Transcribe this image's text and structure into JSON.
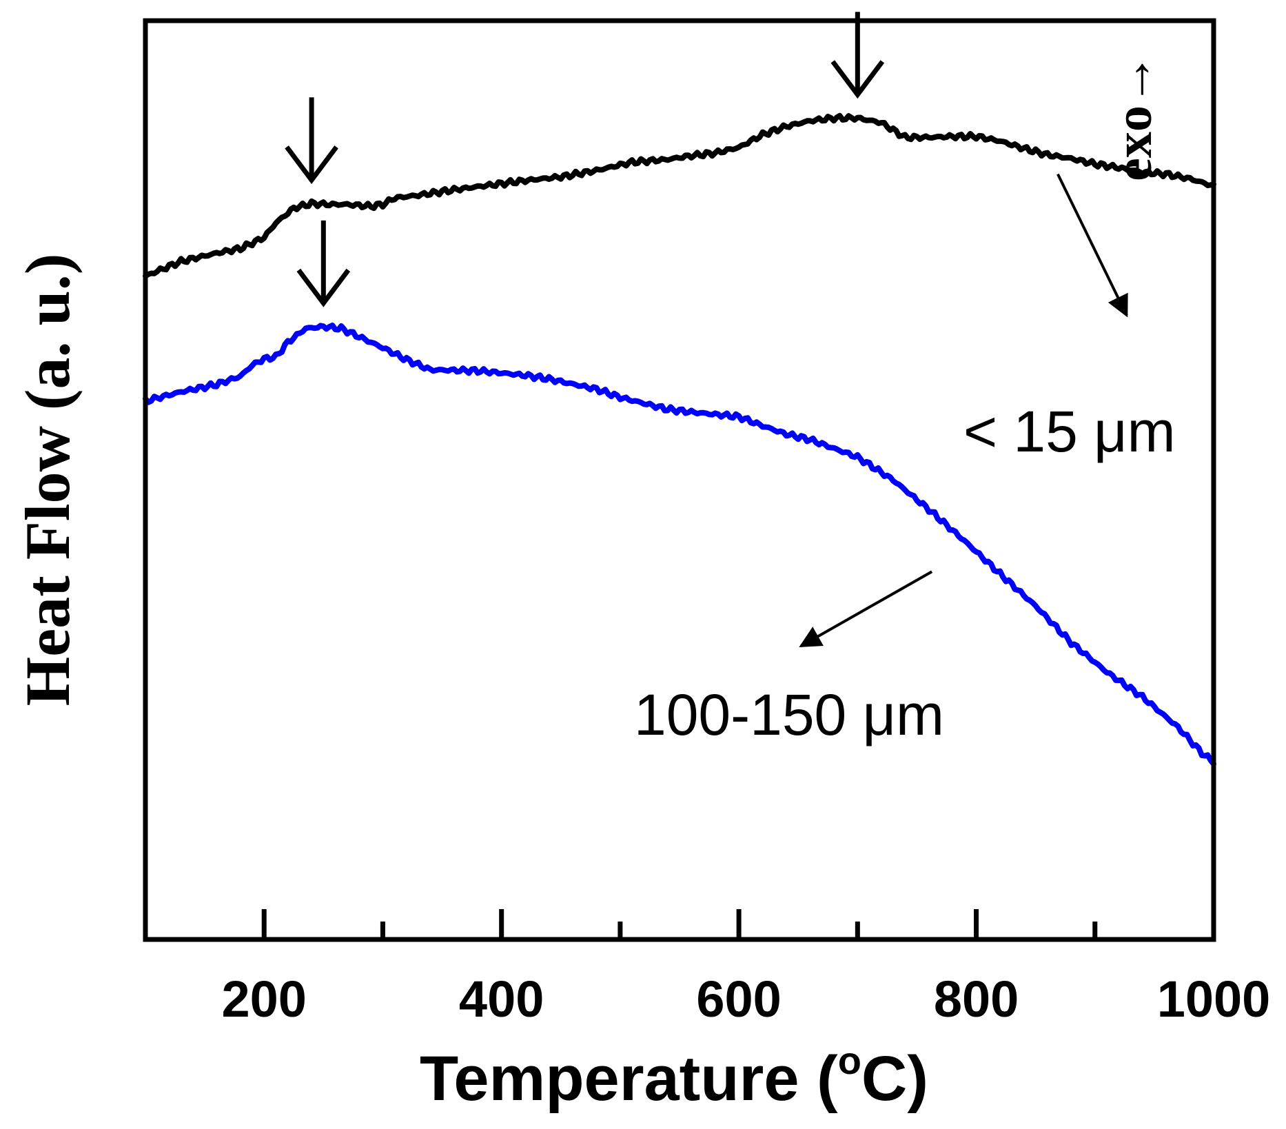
{
  "chart_data": {
    "type": "line",
    "title": "",
    "xlabel": "Temperature (",
    "xlabel_degree": "o",
    "xlabel_unit": "C)",
    "ylabel": "Heat Flow (a. u.)",
    "xlim": [
      100,
      1000
    ],
    "ylim": [
      0,
      100
    ],
    "x_ticks": [
      200,
      400,
      600,
      800,
      1000
    ],
    "x_minor_ticks": [
      300,
      500,
      700,
      900
    ],
    "y_ticks": [],
    "grid": false,
    "annotation_exo": "exo→",
    "series": [
      {
        "name": "< 15 μm",
        "color": "#000000",
        "x": [
          100,
          130,
          160,
          180,
          200,
          210,
          225,
          240,
          255,
          270,
          290,
          300,
          310,
          330,
          360,
          390,
          420,
          450,
          480,
          510,
          540,
          560,
          580,
          600,
          620,
          640,
          660,
          680,
          700,
          720,
          740,
          760,
          780,
          800,
          820,
          840,
          860,
          880,
          900,
          920,
          940,
          960,
          980,
          1000
        ],
        "values": [
          72.2,
          73.8,
          74.7,
          75.2,
          76.4,
          78.0,
          79.6,
          80.1,
          80.0,
          80.0,
          79.8,
          80.0,
          80.7,
          81.0,
          81.6,
          82.1,
          82.6,
          83.0,
          83.7,
          84.6,
          84.9,
          85.3,
          85.6,
          86.2,
          87.6,
          88.5,
          89.1,
          89.4,
          89.4,
          88.9,
          87.3,
          87.3,
          87.4,
          87.4,
          86.9,
          86.1,
          85.4,
          85.0,
          84.4,
          84.0,
          83.5,
          83.3,
          82.8,
          82.0
        ]
      },
      {
        "name": "100-150 μm",
        "color": "#0000ff",
        "x": [
          100,
          130,
          160,
          180,
          190,
          200,
          210,
          220,
          235,
          250,
          265,
          280,
          300,
          320,
          340,
          380,
          420,
          440,
          480,
          500,
          540,
          560,
          600,
          620,
          640,
          660,
          700,
          730,
          760,
          790,
          820,
          850,
          880,
          910,
          940,
          970,
          990,
          1000
        ],
        "values": [
          58.6,
          59.6,
          60.4,
          61.3,
          62.5,
          63.2,
          63.4,
          65.0,
          66.5,
          66.7,
          66.5,
          65.6,
          64.4,
          63.1,
          62.0,
          61.9,
          61.4,
          61.0,
          59.9,
          59.0,
          57.7,
          57.4,
          56.9,
          55.9,
          55.0,
          54.4,
          52.5,
          50.0,
          46.8,
          43.4,
          39.8,
          36.3,
          32.3,
          29.1,
          26.4,
          23.1,
          20.3,
          19.3
        ]
      }
    ],
    "peak_markers": [
      {
        "series": 0,
        "x": 240
      },
      {
        "series": 0,
        "x": 700
      },
      {
        "series": 1,
        "x": 250
      }
    ],
    "series_labels": [
      {
        "text": "< 15 μm",
        "series": 0,
        "anchor_x": 860
      },
      {
        "text": "100-150 μm",
        "series": 1,
        "anchor_x": 780
      }
    ]
  }
}
